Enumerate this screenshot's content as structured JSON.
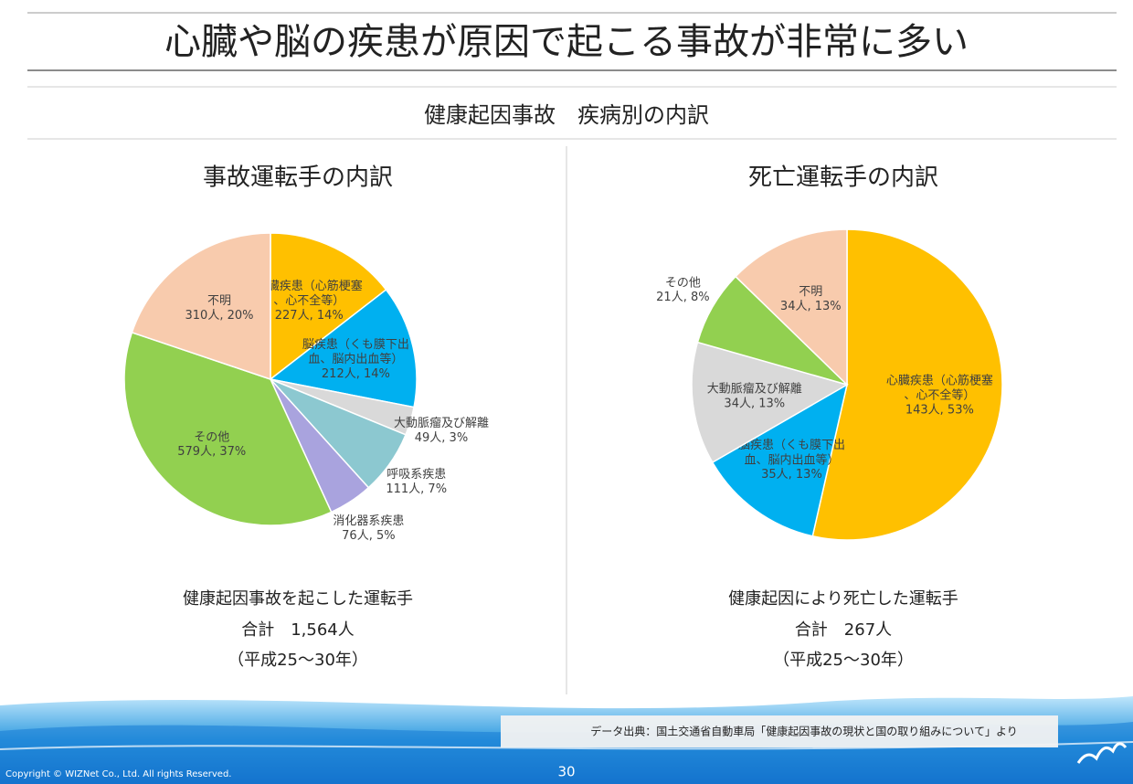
{
  "title": "心臓や脳の疾患が原因で起こる事故が非常に多い",
  "subtitle": "健康起因事故　疾病別の内訳",
  "chart_data": [
    {
      "type": "pie",
      "title": "事故運転手の内訳",
      "categories": [
        "心臓疾患（心筋梗塞、心不全等）",
        "脳疾患（くも膜下出血、脳内出血等）",
        "大動脈瘤及び解離",
        "呼吸系疾患",
        "消化器系疾患",
        "その他",
        "不明"
      ],
      "values": [
        227,
        212,
        49,
        111,
        76,
        579,
        310
      ],
      "value_labels": [
        "227人, 14%",
        "212人, 14%",
        "49人, 3%",
        "111人, 7%",
        "76人, 5%",
        "579人, 37%",
        "310人, 20%"
      ],
      "colors": [
        "#FFC000",
        "#00B0F0",
        "#D9D9D9",
        "#8CC8D0",
        "#A9A3DE",
        "#92D050",
        "#F8CBAD"
      ]
    },
    {
      "type": "pie",
      "title": "死亡運転手の内訳",
      "categories": [
        "心臓疾患（心筋梗塞、心不全等）",
        "脳疾患（くも膜下出血、脳内出血等）",
        "大動脈瘤及び解離",
        "その他",
        "不明"
      ],
      "values": [
        143,
        35,
        34,
        21,
        34
      ],
      "value_labels": [
        "143人, 53%",
        "35人, 13%",
        "34人, 13%",
        "21人, 8%",
        "34人, 13%"
      ],
      "colors": [
        "#FFC000",
        "#00B0F0",
        "#D9D9D9",
        "#92D050",
        "#F8CBAD"
      ]
    }
  ],
  "summaries": [
    [
      "健康起因事故を起こした運転手",
      "合計　1,564人",
      "（平成25〜30年）"
    ],
    [
      "健康起因により死亡した運転手",
      "合計　267人",
      "（平成25〜30年）"
    ]
  ],
  "source": "データ出典：国土交通省自動車局「健康起因事故の現状と国の取り組みについて」より",
  "footer": {
    "copyright": "Copyright © WIZNet Co., Ltd. All rights Reserved.",
    "page": "30"
  }
}
